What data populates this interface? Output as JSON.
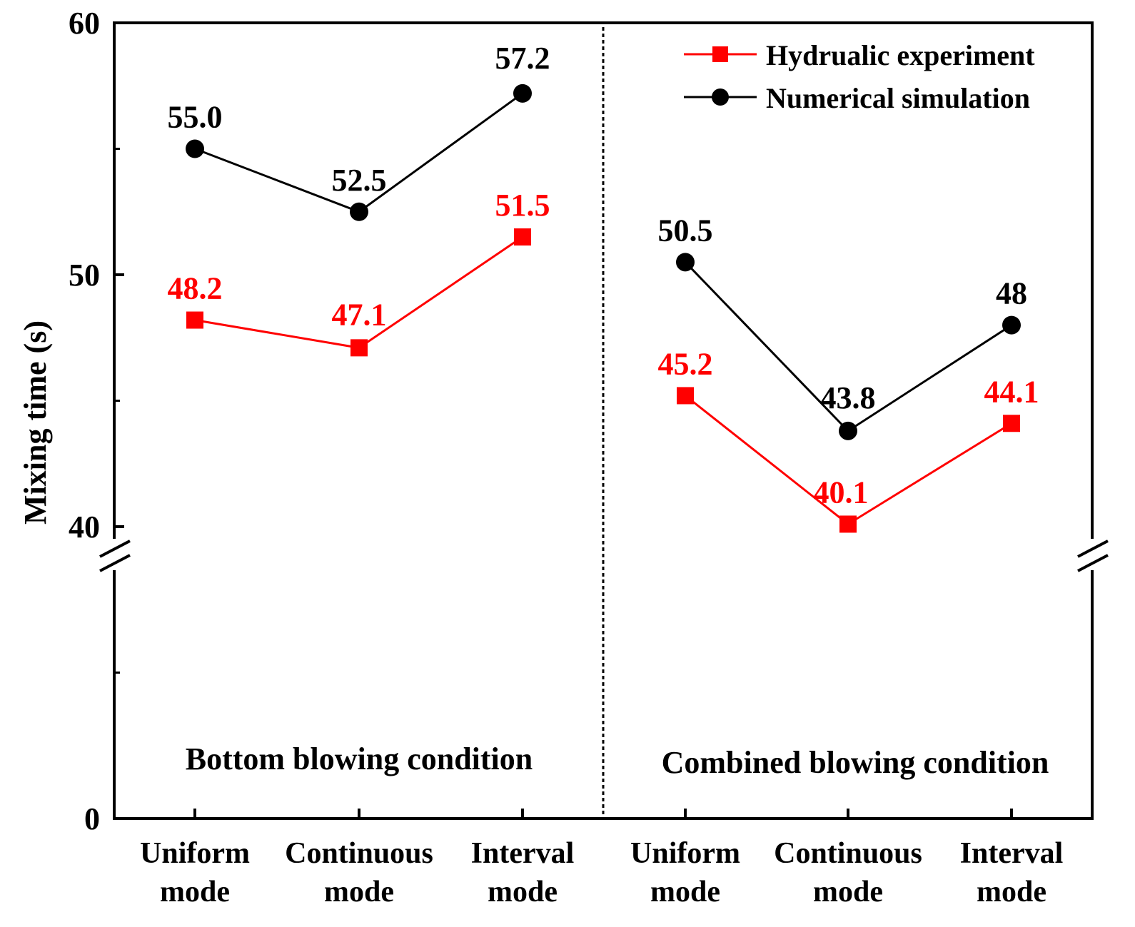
{
  "chart_data": {
    "type": "line",
    "title": "",
    "ylabel": "Mixing time (s)",
    "xlabel": "",
    "ylim": [
      0,
      60
    ],
    "axis_break": true,
    "y_ticks": [
      {
        "label": "60",
        "value": 60
      },
      {
        "label": "50",
        "value": 50
      },
      {
        "label": "40",
        "value": 40
      },
      {
        "label": "0",
        "value": 0
      }
    ],
    "categories": [
      [
        "Uniform",
        "mode"
      ],
      [
        "Continuous",
        "mode"
      ],
      [
        "Interval",
        "mode"
      ],
      [
        "Uniform",
        "mode"
      ],
      [
        "Continuous",
        "mode"
      ],
      [
        "Interval",
        "mode"
      ]
    ],
    "groups": [
      {
        "label": "Bottom blowing condition",
        "categories": [
          0,
          1,
          2
        ]
      },
      {
        "label": "Combined blowing condition",
        "categories": [
          3,
          4,
          5
        ]
      }
    ],
    "series": [
      {
        "name": "Hydrualic experiment",
        "marker": "square",
        "color": "#ff0000",
        "values": [
          48.2,
          47.1,
          51.5,
          45.2,
          40.1,
          44.1
        ],
        "labels": [
          "48.2",
          "47.1",
          "51.5",
          "45.2",
          "40.1",
          "44.1"
        ]
      },
      {
        "name": "Numerical simulation",
        "marker": "circle",
        "color": "#000000",
        "values": [
          55.0,
          52.5,
          57.2,
          50.5,
          43.8,
          48
        ],
        "labels": [
          "55.0",
          "52.5",
          "57.2",
          "50.5",
          "43.8",
          "48"
        ]
      }
    ],
    "legend_position": "top-right"
  }
}
